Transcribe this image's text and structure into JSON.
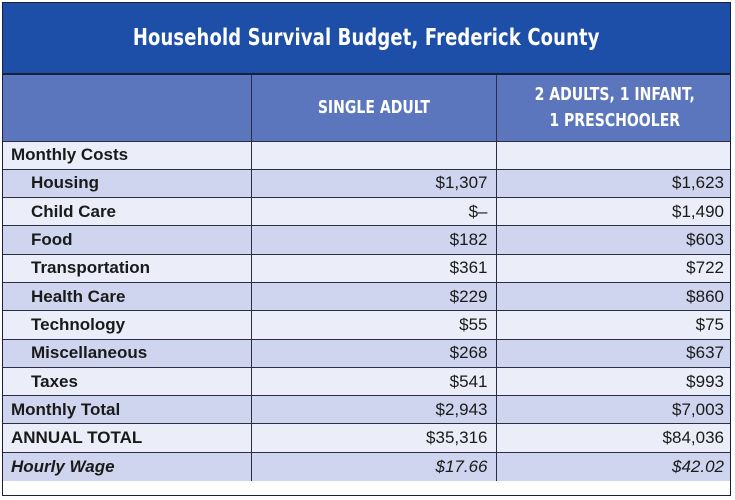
{
  "title": "Household Survival Budget, Frederick County",
  "columns": {
    "label": "",
    "single": "SINGLE ADULT",
    "family_line1": "2 ADULTS, 1 INFANT,",
    "family_line2": "1 PRESCHOOLER"
  },
  "section_label": "Monthly Costs",
  "rows": [
    {
      "label": "Housing",
      "single": "$1,307",
      "family": "$1,623"
    },
    {
      "label": "Child Care",
      "single": "$–",
      "family": "$1,490"
    },
    {
      "label": "Food",
      "single": "$182",
      "family": "$603"
    },
    {
      "label": "Transportation",
      "single": "$361",
      "family": "$722"
    },
    {
      "label": "Health Care",
      "single": "$229",
      "family": "$860"
    },
    {
      "label": "Technology",
      "single": "$55",
      "family": "$75"
    },
    {
      "label": "Miscellaneous",
      "single": "$268",
      "family": "$637"
    },
    {
      "label": "Taxes",
      "single": "$541",
      "family": "$993"
    }
  ],
  "monthly_total": {
    "label": "Monthly Total",
    "single": "$2,943",
    "family": "$7,003"
  },
  "annual_total": {
    "label": "ANNUAL TOTAL",
    "single": "$35,316",
    "family": "$84,036"
  },
  "hourly_wage": {
    "label": "Hourly Wage",
    "single": "$17.66",
    "family": "$42.02"
  },
  "colors": {
    "title_bg": "#1d4fa8",
    "header_bg": "#5b76bd",
    "row_alt": "#cfd5ee",
    "row_plain": "#ebeef8"
  }
}
